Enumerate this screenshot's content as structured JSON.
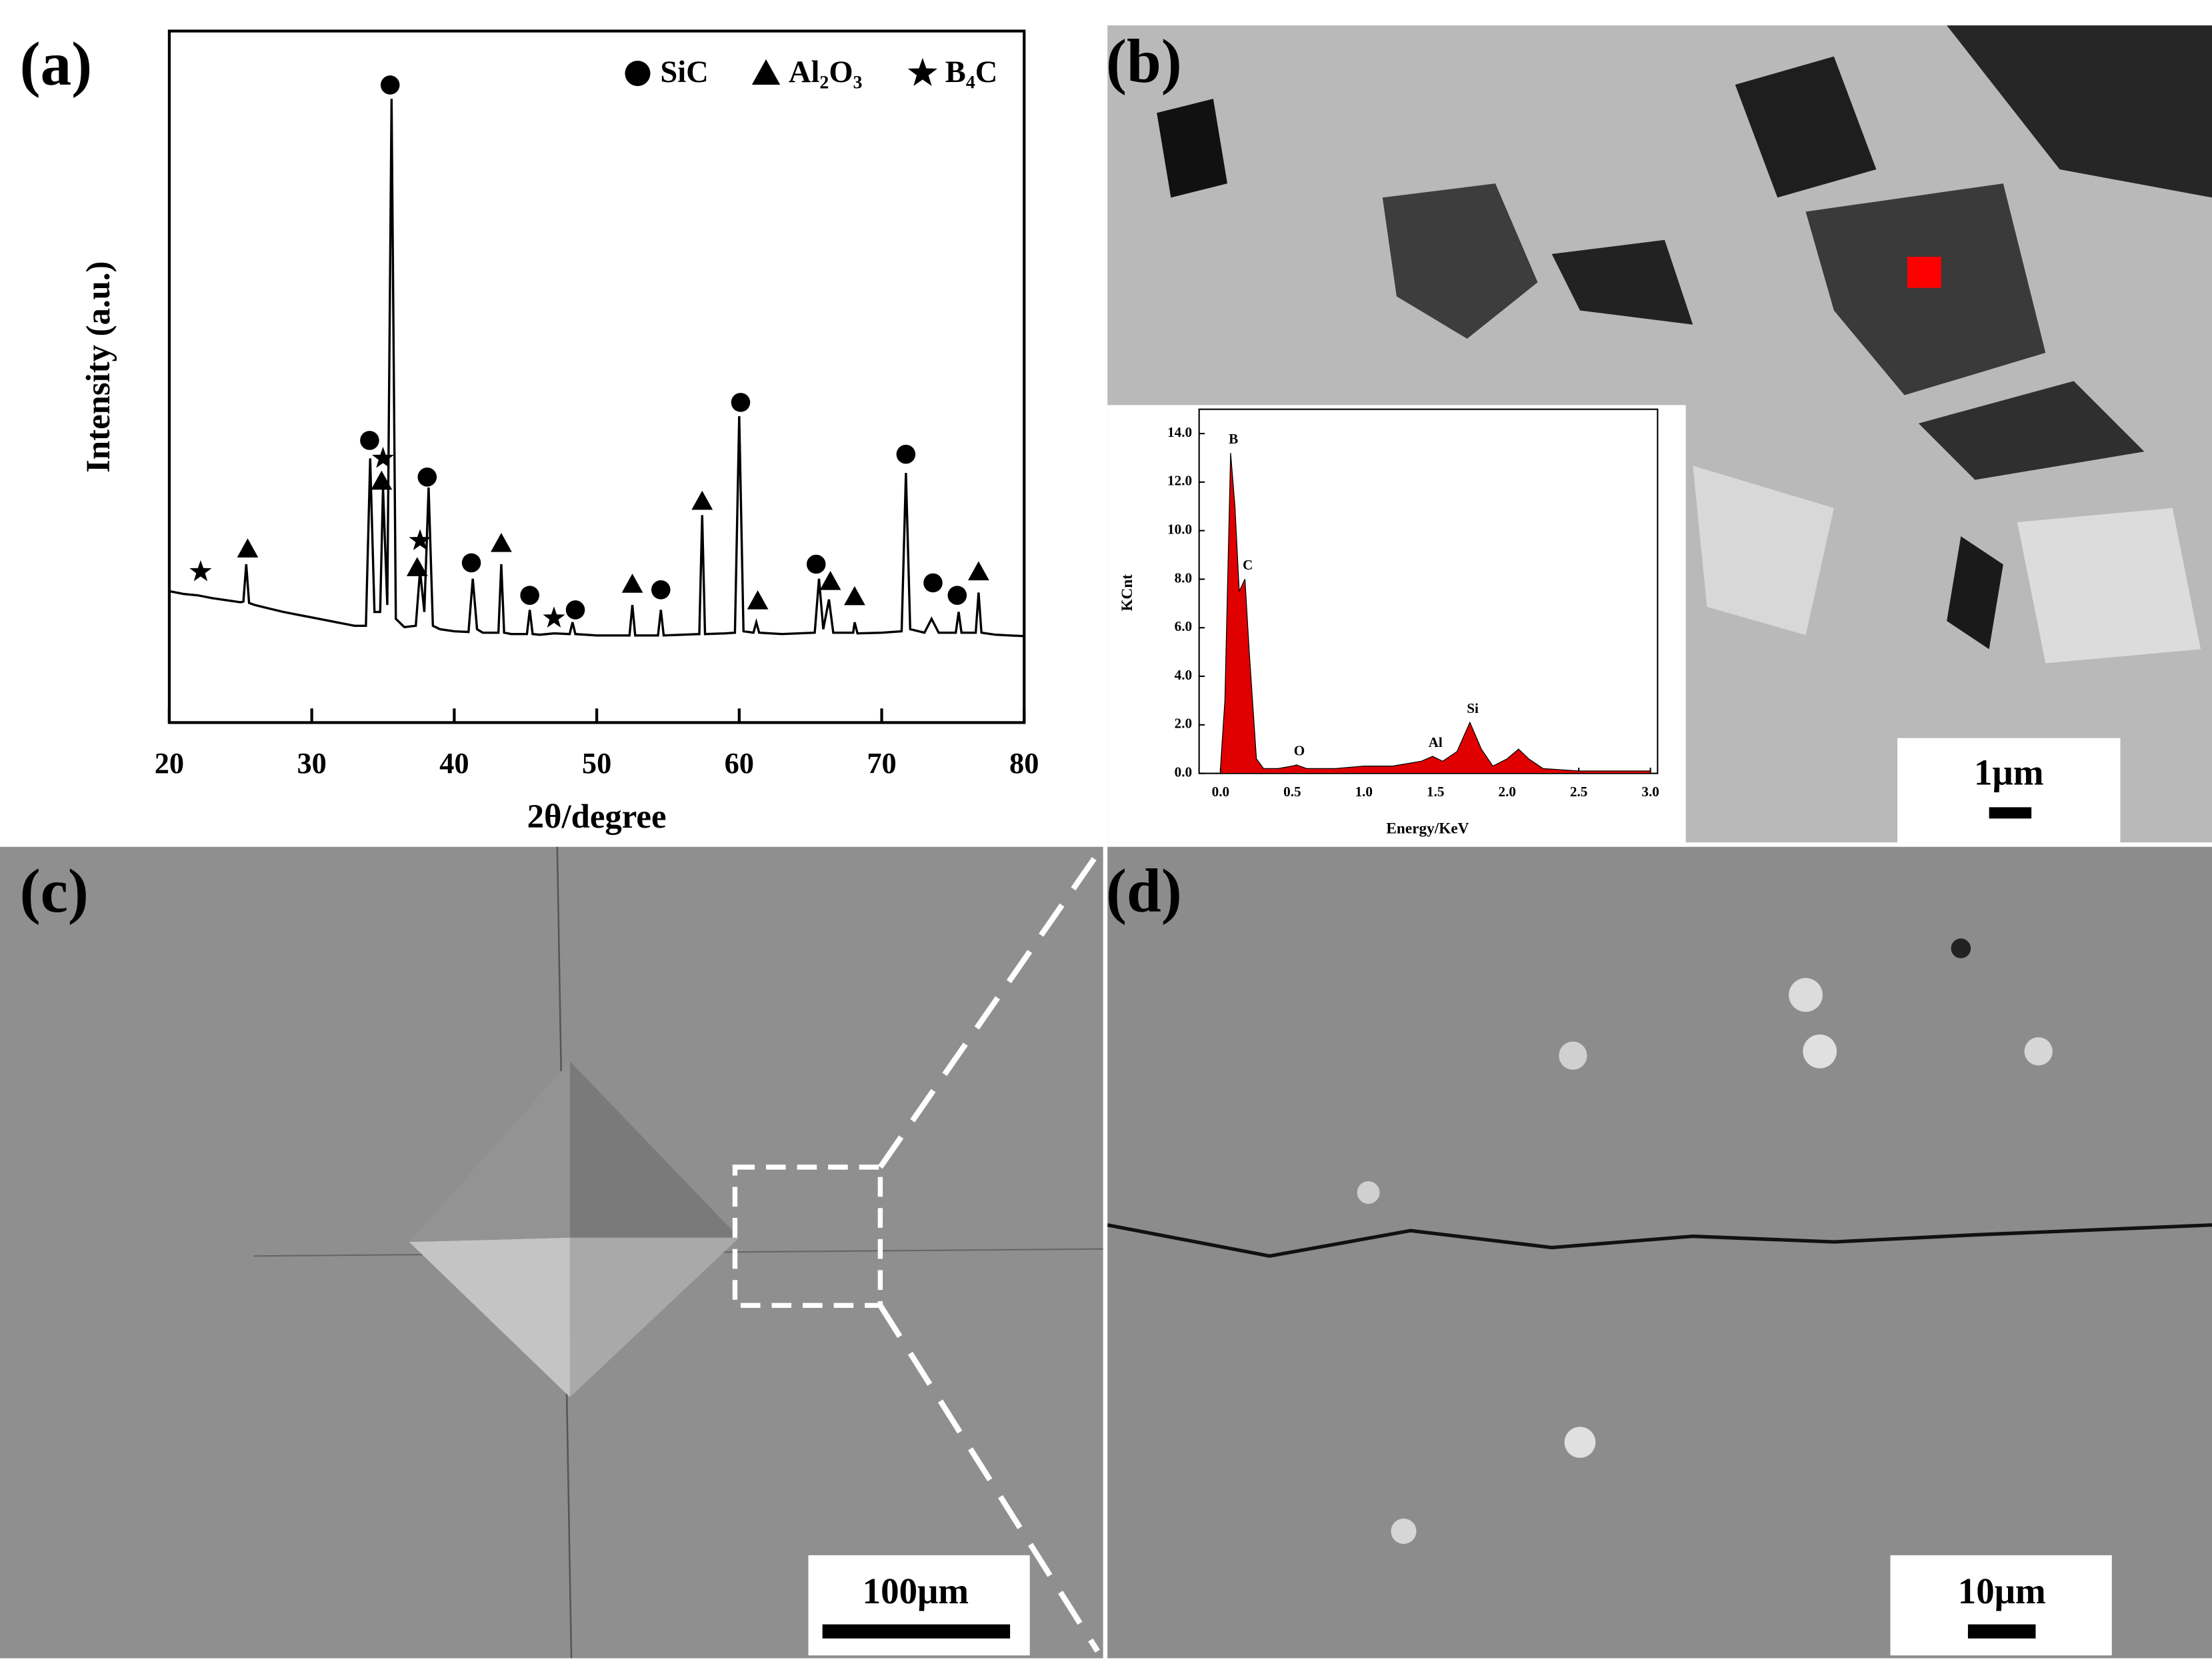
{
  "chart_data": [
    {
      "type": "line",
      "xlabel": "2θ/degree",
      "ylabel": "Intensity (a.u.)",
      "color": "#000000",
      "xlim": [
        20,
        80
      ],
      "ylim": [
        0,
        100
      ],
      "xticks": [
        20,
        30,
        40,
        50,
        60,
        70,
        80
      ],
      "legend": "upper right",
      "x": [
        20,
        21,
        22,
        23,
        24,
        25,
        25.2,
        25.4,
        25.6,
        26,
        27,
        28,
        29,
        30,
        31,
        32,
        33,
        33.8,
        34.1,
        34.4,
        34.8,
        35.0,
        35.3,
        35.6,
        35.9,
        36.5,
        37.3,
        37.6,
        37.9,
        38.2,
        38.5,
        39,
        40,
        41,
        41.3,
        41.6,
        42,
        43.1,
        43.3,
        43.5,
        44,
        45.1,
        45.3,
        45.5,
        46,
        47,
        48.1,
        48.3,
        48.5,
        50,
        52.3,
        52.5,
        52.7,
        54.3,
        54.5,
        54.7,
        56,
        57.2,
        57.4,
        57.6,
        59,
        59.7,
        60.0,
        60.3,
        61,
        61.2,
        61.4,
        63,
        65.3,
        65.6,
        65.9,
        66.3,
        66.6,
        68,
        68.1,
        68.3,
        70,
        71.4,
        71.7,
        72,
        73,
        73.5,
        74,
        75.2,
        75.4,
        75.6,
        76.6,
        76.8,
        77,
        78,
        79,
        80
      ],
      "values": [
        19,
        18.6,
        18.4,
        18,
        17.7,
        17.4,
        17.5,
        22.9,
        17.3,
        17,
        16.5,
        16,
        15.6,
        15.2,
        14.8,
        14.4,
        14,
        14,
        38.2,
        16,
        16,
        34,
        17,
        90.2,
        15,
        13.8,
        14,
        22,
        16,
        34,
        14,
        13.5,
        13.2,
        13.1,
        20.8,
        13.5,
        13,
        13,
        22.9,
        13,
        12.8,
        12.8,
        16.3,
        12.8,
        12.7,
        12.9,
        12.8,
        14.5,
        12.8,
        12.6,
        12.6,
        17,
        12.6,
        12.6,
        16.3,
        12.6,
        12.7,
        12.8,
        30,
        12.8,
        12.9,
        13,
        44.3,
        13.2,
        13,
        14.5,
        13,
        12.8,
        13,
        20.8,
        13.5,
        17.8,
        13,
        13,
        14.5,
        12.9,
        13,
        13.2,
        36.1,
        13.5,
        13,
        15,
        13,
        13,
        16,
        13,
        13,
        18.8,
        13,
        12.7,
        12.6,
        12.5
      ],
      "markers": [
        {
          "name": "SiC",
          "symbol": "circle",
          "x": [
            34.06,
            35.5,
            38.1,
            41.2,
            45.3,
            48.5,
            54.5,
            60.1,
            65.4,
            71.7,
            73.6,
            75.3
          ],
          "y": [
            40.8,
            92.2,
            35.5,
            23.1,
            18.4,
            16.3,
            19.2,
            46.3,
            22.9,
            38.8,
            20.2,
            18.4
          ]
        },
        {
          "name": "Al₂O₃",
          "symbol": "triangle",
          "x": [
            25.5,
            34.9,
            37.4,
            43.3,
            52.5,
            57.4,
            61.3,
            66.4,
            68.1,
            76.8
          ],
          "y": [
            25.1,
            34.9,
            22.4,
            25.9,
            20,
            32,
            17.6,
            20.4,
            18.2,
            21.8
          ]
        },
        {
          "name": "B₄C",
          "symbol": "star",
          "x": [
            22.2,
            35.0,
            37.6,
            47
          ],
          "y": [
            21.8,
            38.2,
            26.3,
            15.1
          ]
        }
      ]
    },
    {
      "type": "area",
      "xlabel": "Energy/KeV",
      "ylabel": "KCnt",
      "color": "#e00000",
      "xlim": [
        -0.15,
        3.05
      ],
      "ylim": [
        0,
        15
      ],
      "xticks": [
        {
          "value": 0,
          "label": "0.0"
        },
        {
          "value": 0.5,
          "label": "0.5"
        },
        {
          "value": 1,
          "label": "1.0"
        },
        {
          "value": 1.5,
          "label": "1.5"
        },
        {
          "value": 2,
          "label": "2.0"
        },
        {
          "value": 2.5,
          "label": "2.5"
        },
        {
          "value": 3,
          "label": "3.0"
        }
      ],
      "yticks": [
        {
          "value": 0,
          "label": "0.0"
        },
        {
          "value": 2,
          "label": "2.0"
        },
        {
          "value": 4,
          "label": "4.0"
        },
        {
          "value": 6,
          "label": "6.0"
        },
        {
          "value": 8,
          "label": "8.0"
        },
        {
          "value": 10,
          "label": "10.0"
        },
        {
          "value": 12,
          "label": "12.0"
        },
        {
          "value": 14,
          "label": "14.0"
        }
      ],
      "x": [
        0,
        0.03,
        0.07,
        0.1,
        0.13,
        0.17,
        0.2,
        0.25,
        0.3,
        0.4,
        0.5,
        0.53,
        0.6,
        0.8,
        1.0,
        1.2,
        1.4,
        1.48,
        1.55,
        1.65,
        1.74,
        1.82,
        1.9,
        2.0,
        2.08,
        2.15,
        2.25,
        2.5,
        3.0
      ],
      "values": [
        0.3,
        3,
        13.2,
        11,
        7.5,
        8,
        5,
        0.6,
        0.2,
        0.2,
        0.3,
        0.35,
        0.2,
        0.2,
        0.3,
        0.3,
        0.5,
        0.7,
        0.5,
        0.9,
        2.1,
        1.0,
        0.3,
        0.6,
        1.0,
        0.6,
        0.2,
        0.1,
        0.1
      ],
      "annotations": [
        {
          "text": "B",
          "x": 0.07,
          "y": 13.2
        },
        {
          "text": "C",
          "x": 0.17,
          "y": 8
        },
        {
          "text": "O",
          "x": 0.53,
          "y": 0.35
        },
        {
          "text": "Al",
          "x": 1.48,
          "y": 0.7
        },
        {
          "text": "Si",
          "x": 1.74,
          "y": 2.1
        }
      ]
    }
  ],
  "panels": {
    "labels": [
      "(a)",
      "(b)",
      "(c)",
      "(d)"
    ],
    "scale_bars": [
      "1μm",
      "100μm",
      "10μm"
    ]
  }
}
